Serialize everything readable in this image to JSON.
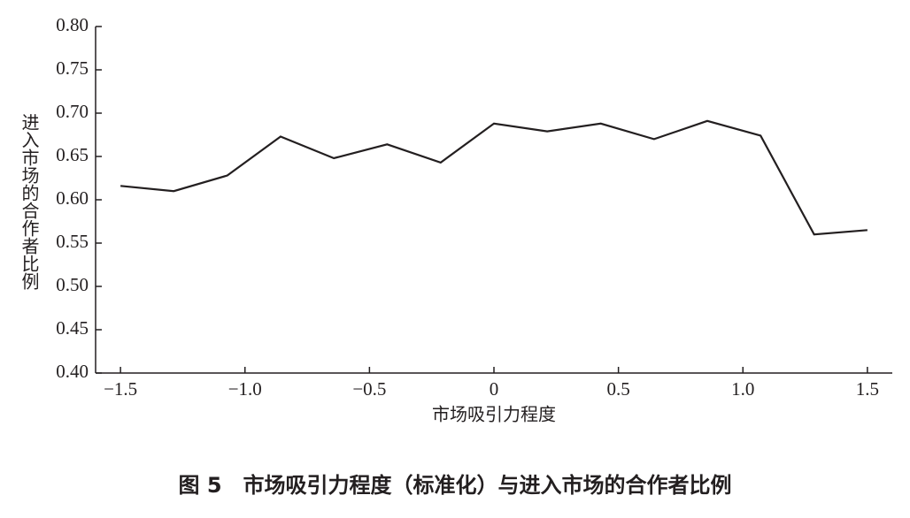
{
  "chart_data": {
    "type": "line",
    "caption": "图 5　市场吸引力程度（标准化）与进入市场的合作者比例",
    "x_label": "市场吸引力程度",
    "y_label": "进入市场的合作者比例",
    "x": [
      -1.5,
      -1.286,
      -1.071,
      -0.857,
      -0.643,
      -0.429,
      -0.214,
      0,
      0.214,
      0.429,
      0.643,
      0.857,
      1.071,
      1.286,
      1.5
    ],
    "values": [
      0.616,
      0.61,
      0.628,
      0.673,
      0.648,
      0.664,
      0.643,
      0.688,
      0.679,
      0.688,
      0.67,
      0.691,
      0.674,
      0.56,
      0.565
    ],
    "color": "#231f20",
    "xlim": [
      -1.6,
      1.6
    ],
    "ylim": [
      0.4,
      0.8
    ],
    "xticks": [
      {
        "value": -1.5,
        "label": "−1.5"
      },
      {
        "value": -1.0,
        "label": "−1.0"
      },
      {
        "value": -0.5,
        "label": "−0.5"
      },
      0,
      0.5,
      {
        "value": 1.0,
        "label": "1.0"
      },
      1.5
    ],
    "yticks": [
      {
        "value": 0.4,
        "label": "0.40"
      },
      0.45,
      {
        "value": 0.5,
        "label": "0.50"
      },
      0.55,
      {
        "value": 0.6,
        "label": "0.60"
      },
      0.65,
      {
        "value": 0.7,
        "label": "0.70"
      },
      0.75,
      {
        "value": 0.8,
        "label": "0.80"
      }
    ]
  }
}
